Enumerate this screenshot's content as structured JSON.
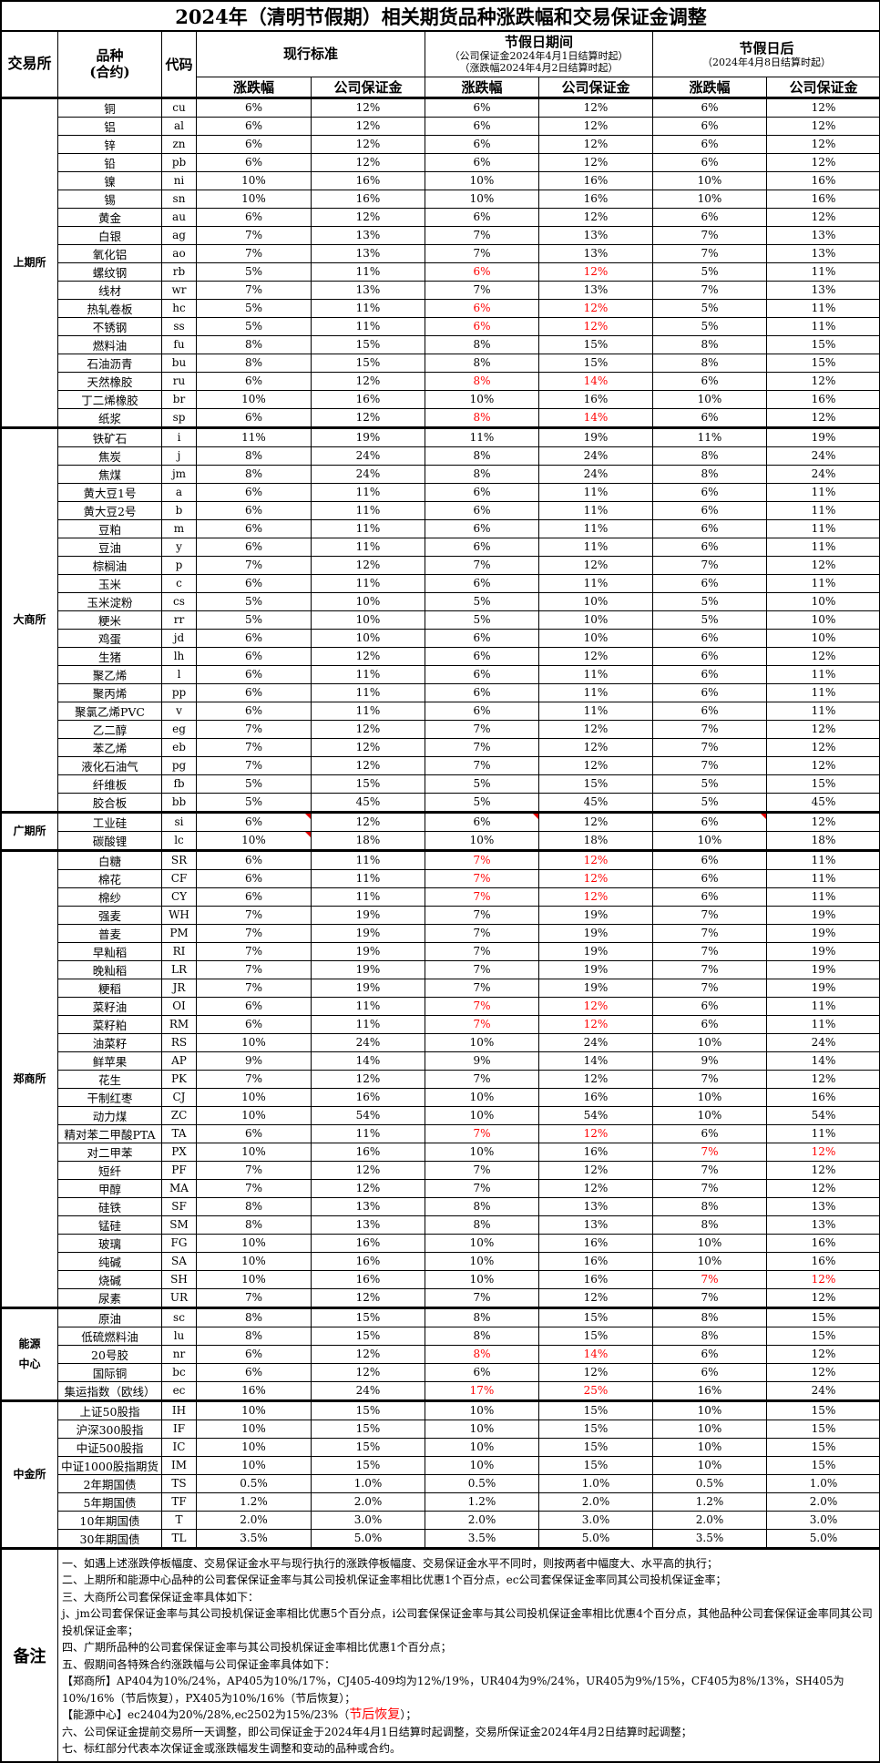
{
  "title": "2024年（清明节假期）相关期货品种涨跌幅和交易保证金调整",
  "header": {
    "exchange": "交易所",
    "variety": "品种\n(合约)",
    "code": "代码",
    "current": "现行标准",
    "holiday": "节假日期间",
    "holiday_sub1": "（公司保证金2024年4月1日结算时起）",
    "holiday_sub2": "（涨跌幅2024年4月2日结算时起）",
    "after": "节假日后",
    "after_sub": "（2024年4月8日结算时起）",
    "limit": "涨跌幅",
    "margin": "公司保证金"
  },
  "colors": {
    "highlight": "#ff0000",
    "comment_marker": "#e00000"
  },
  "exchanges": [
    {
      "name": "上期所",
      "rows": [
        {
          "v": [
            "铜",
            "cu",
            "6%",
            "12%",
            "6%",
            "12%",
            "6%",
            "12%"
          ]
        },
        {
          "v": [
            "铝",
            "al",
            "6%",
            "12%",
            "6%",
            "12%",
            "6%",
            "12%"
          ]
        },
        {
          "v": [
            "锌",
            "zn",
            "6%",
            "12%",
            "6%",
            "12%",
            "6%",
            "12%"
          ]
        },
        {
          "v": [
            "铅",
            "pb",
            "6%",
            "12%",
            "6%",
            "12%",
            "6%",
            "12%"
          ]
        },
        {
          "v": [
            "镍",
            "ni",
            "10%",
            "16%",
            "10%",
            "16%",
            "10%",
            "16%"
          ]
        },
        {
          "v": [
            "锡",
            "sn",
            "10%",
            "16%",
            "10%",
            "16%",
            "10%",
            "16%"
          ]
        },
        {
          "v": [
            "黄金",
            "au",
            "6%",
            "12%",
            "6%",
            "12%",
            "6%",
            "12%"
          ]
        },
        {
          "v": [
            "白银",
            "ag",
            "7%",
            "13%",
            "7%",
            "13%",
            "7%",
            "13%"
          ]
        },
        {
          "v": [
            "氧化铝",
            "ao",
            "7%",
            "13%",
            "7%",
            "13%",
            "7%",
            "13%"
          ]
        },
        {
          "v": [
            "螺纹钢",
            "rb",
            "5%",
            "11%",
            "6%",
            "12%",
            "5%",
            "11%"
          ],
          "red": "holiday"
        },
        {
          "v": [
            "线材",
            "wr",
            "7%",
            "13%",
            "7%",
            "13%",
            "7%",
            "13%"
          ]
        },
        {
          "v": [
            "热轧卷板",
            "hc",
            "5%",
            "11%",
            "6%",
            "12%",
            "5%",
            "11%"
          ],
          "red": "holiday"
        },
        {
          "v": [
            "不锈钢",
            "ss",
            "5%",
            "11%",
            "6%",
            "12%",
            "5%",
            "11%"
          ],
          "red": "holiday"
        },
        {
          "v": [
            "燃料油",
            "fu",
            "8%",
            "15%",
            "8%",
            "15%",
            "8%",
            "15%"
          ]
        },
        {
          "v": [
            "石油沥青",
            "bu",
            "8%",
            "15%",
            "8%",
            "15%",
            "8%",
            "15%"
          ]
        },
        {
          "v": [
            "天然橡胶",
            "ru",
            "6%",
            "12%",
            "8%",
            "14%",
            "6%",
            "12%"
          ],
          "red": "holiday"
        },
        {
          "v": [
            "丁二烯橡胶",
            "br",
            "10%",
            "16%",
            "10%",
            "16%",
            "10%",
            "16%"
          ]
        },
        {
          "v": [
            "纸浆",
            "sp",
            "6%",
            "12%",
            "8%",
            "14%",
            "6%",
            "12%"
          ],
          "red": "holiday"
        }
      ]
    },
    {
      "name": "大商所",
      "rows": [
        {
          "v": [
            "铁矿石",
            "i",
            "11%",
            "19%",
            "11%",
            "19%",
            "11%",
            "19%"
          ]
        },
        {
          "v": [
            "焦炭",
            "j",
            "8%",
            "24%",
            "8%",
            "24%",
            "8%",
            "24%"
          ]
        },
        {
          "v": [
            "焦煤",
            "jm",
            "8%",
            "24%",
            "8%",
            "24%",
            "8%",
            "24%"
          ]
        },
        {
          "v": [
            "黄大豆1号",
            "a",
            "6%",
            "11%",
            "6%",
            "11%",
            "6%",
            "11%"
          ]
        },
        {
          "v": [
            "黄大豆2号",
            "b",
            "6%",
            "11%",
            "6%",
            "11%",
            "6%",
            "11%"
          ]
        },
        {
          "v": [
            "豆粕",
            "m",
            "6%",
            "11%",
            "6%",
            "11%",
            "6%",
            "11%"
          ]
        },
        {
          "v": [
            "豆油",
            "y",
            "6%",
            "11%",
            "6%",
            "11%",
            "6%",
            "11%"
          ]
        },
        {
          "v": [
            "棕榈油",
            "p",
            "7%",
            "12%",
            "7%",
            "12%",
            "7%",
            "12%"
          ]
        },
        {
          "v": [
            "玉米",
            "c",
            "6%",
            "11%",
            "6%",
            "11%",
            "6%",
            "11%"
          ]
        },
        {
          "v": [
            "玉米淀粉",
            "cs",
            "5%",
            "10%",
            "5%",
            "10%",
            "5%",
            "10%"
          ]
        },
        {
          "v": [
            "粳米",
            "rr",
            "5%",
            "10%",
            "5%",
            "10%",
            "5%",
            "10%"
          ]
        },
        {
          "v": [
            "鸡蛋",
            "jd",
            "6%",
            "10%",
            "6%",
            "10%",
            "6%",
            "10%"
          ]
        },
        {
          "v": [
            "生猪",
            "lh",
            "6%",
            "12%",
            "6%",
            "12%",
            "6%",
            "12%"
          ]
        },
        {
          "v": [
            "聚乙烯",
            "l",
            "6%",
            "11%",
            "6%",
            "11%",
            "6%",
            "11%"
          ]
        },
        {
          "v": [
            "聚丙烯",
            "pp",
            "6%",
            "11%",
            "6%",
            "11%",
            "6%",
            "11%"
          ]
        },
        {
          "v": [
            "聚氯乙烯PVC",
            "v",
            "6%",
            "11%",
            "6%",
            "11%",
            "6%",
            "11%"
          ]
        },
        {
          "v": [
            "乙二醇",
            "eg",
            "7%",
            "12%",
            "7%",
            "12%",
            "7%",
            "12%"
          ]
        },
        {
          "v": [
            "苯乙烯",
            "eb",
            "7%",
            "12%",
            "7%",
            "12%",
            "7%",
            "12%"
          ]
        },
        {
          "v": [
            "液化石油气",
            "pg",
            "7%",
            "12%",
            "7%",
            "12%",
            "7%",
            "12%"
          ]
        },
        {
          "v": [
            "纤维板",
            "fb",
            "5%",
            "15%",
            "5%",
            "15%",
            "5%",
            "15%"
          ]
        },
        {
          "v": [
            "胶合板",
            "bb",
            "5%",
            "45%",
            "5%",
            "45%",
            "5%",
            "45%"
          ]
        }
      ]
    },
    {
      "name": "广期所",
      "rows": [
        {
          "v": [
            "工业硅",
            "si",
            "6%",
            "12%",
            "6%",
            "12%",
            "6%",
            "12%"
          ],
          "flags": [
            2,
            4,
            6
          ]
        },
        {
          "v": [
            "碳酸锂",
            "lc",
            "10%",
            "18%",
            "10%",
            "18%",
            "10%",
            "18%"
          ],
          "flags": [
            2
          ]
        }
      ]
    },
    {
      "name": "郑商所",
      "rows": [
        {
          "v": [
            "白糖",
            "SR",
            "6%",
            "11%",
            "7%",
            "12%",
            "6%",
            "11%"
          ],
          "red": "holiday"
        },
        {
          "v": [
            "棉花",
            "CF",
            "6%",
            "11%",
            "7%",
            "12%",
            "6%",
            "11%"
          ],
          "red": "holiday"
        },
        {
          "v": [
            "棉纱",
            "CY",
            "6%",
            "11%",
            "7%",
            "12%",
            "6%",
            "11%"
          ],
          "red": "holiday"
        },
        {
          "v": [
            "强麦",
            "WH",
            "7%",
            "19%",
            "7%",
            "19%",
            "7%",
            "19%"
          ]
        },
        {
          "v": [
            "普麦",
            "PM",
            "7%",
            "19%",
            "7%",
            "19%",
            "7%",
            "19%"
          ]
        },
        {
          "v": [
            "早籼稻",
            "RI",
            "7%",
            "19%",
            "7%",
            "19%",
            "7%",
            "19%"
          ]
        },
        {
          "v": [
            "晚籼稻",
            "LR",
            "7%",
            "19%",
            "7%",
            "19%",
            "7%",
            "19%"
          ]
        },
        {
          "v": [
            "粳稻",
            "JR",
            "7%",
            "19%",
            "7%",
            "19%",
            "7%",
            "19%"
          ]
        },
        {
          "v": [
            "菜籽油",
            "OI",
            "6%",
            "11%",
            "7%",
            "12%",
            "6%",
            "11%"
          ],
          "red": "holiday"
        },
        {
          "v": [
            "菜籽粕",
            "RM",
            "6%",
            "11%",
            "7%",
            "12%",
            "6%",
            "11%"
          ],
          "red": "holiday"
        },
        {
          "v": [
            "油菜籽",
            "RS",
            "10%",
            "24%",
            "10%",
            "24%",
            "10%",
            "24%"
          ]
        },
        {
          "v": [
            "鲜苹果",
            "AP",
            "9%",
            "14%",
            "9%",
            "14%",
            "9%",
            "14%"
          ]
        },
        {
          "v": [
            "花生",
            "PK",
            "7%",
            "12%",
            "7%",
            "12%",
            "7%",
            "12%"
          ]
        },
        {
          "v": [
            "干制红枣",
            "CJ",
            "10%",
            "16%",
            "10%",
            "16%",
            "10%",
            "16%"
          ]
        },
        {
          "v": [
            "动力煤",
            "ZC",
            "10%",
            "54%",
            "10%",
            "54%",
            "10%",
            "54%"
          ]
        },
        {
          "v": [
            "精对苯二甲酸PTA",
            "TA",
            "6%",
            "11%",
            "7%",
            "12%",
            "6%",
            "11%"
          ],
          "red": "holiday"
        },
        {
          "v": [
            "对二甲苯",
            "PX",
            "10%",
            "16%",
            "10%",
            "16%",
            "7%",
            "12%"
          ],
          "red": "after"
        },
        {
          "v": [
            "短纤",
            "PF",
            "7%",
            "12%",
            "7%",
            "12%",
            "7%",
            "12%"
          ]
        },
        {
          "v": [
            "甲醇",
            "MA",
            "7%",
            "12%",
            "7%",
            "12%",
            "7%",
            "12%"
          ]
        },
        {
          "v": [
            "硅铁",
            "SF",
            "8%",
            "13%",
            "8%",
            "13%",
            "8%",
            "13%"
          ]
        },
        {
          "v": [
            "锰硅",
            "SM",
            "8%",
            "13%",
            "8%",
            "13%",
            "8%",
            "13%"
          ]
        },
        {
          "v": [
            "玻璃",
            "FG",
            "10%",
            "16%",
            "10%",
            "16%",
            "10%",
            "16%"
          ]
        },
        {
          "v": [
            "纯碱",
            "SA",
            "10%",
            "16%",
            "10%",
            "16%",
            "10%",
            "16%"
          ]
        },
        {
          "v": [
            "烧碱",
            "SH",
            "10%",
            "16%",
            "10%",
            "16%",
            "7%",
            "12%"
          ],
          "red": "after"
        },
        {
          "v": [
            "尿素",
            "UR",
            "7%",
            "12%",
            "7%",
            "12%",
            "7%",
            "12%"
          ]
        }
      ]
    },
    {
      "name": "能源\n中心",
      "rows": [
        {
          "v": [
            "原油",
            "sc",
            "8%",
            "15%",
            "8%",
            "15%",
            "8%",
            "15%"
          ]
        },
        {
          "v": [
            "低硫燃料油",
            "lu",
            "8%",
            "15%",
            "8%",
            "15%",
            "8%",
            "15%"
          ]
        },
        {
          "v": [
            "20号胶",
            "nr",
            "6%",
            "12%",
            "8%",
            "14%",
            "6%",
            "12%"
          ],
          "red": "holiday"
        },
        {
          "v": [
            "国际铜",
            "bc",
            "6%",
            "12%",
            "6%",
            "12%",
            "6%",
            "12%"
          ]
        },
        {
          "v": [
            "集运指数（欧线）",
            "ec",
            "16%",
            "24%",
            "17%",
            "25%",
            "16%",
            "24%"
          ],
          "red": "holiday"
        }
      ]
    },
    {
      "name": "中金所",
      "rows": [
        {
          "v": [
            "上证50股指",
            "IH",
            "10%",
            "15%",
            "10%",
            "15%",
            "10%",
            "15%"
          ]
        },
        {
          "v": [
            "沪深300股指",
            "IF",
            "10%",
            "15%",
            "10%",
            "15%",
            "10%",
            "15%"
          ]
        },
        {
          "v": [
            "中证500股指",
            "IC",
            "10%",
            "15%",
            "10%",
            "15%",
            "10%",
            "15%"
          ]
        },
        {
          "v": [
            "中证1000股指期货",
            "IM",
            "10%",
            "15%",
            "10%",
            "15%",
            "10%",
            "15%"
          ]
        },
        {
          "v": [
            "2年期国债",
            "TS",
            "0.5%",
            "1.0%",
            "0.5%",
            "1.0%",
            "0.5%",
            "1.0%"
          ]
        },
        {
          "v": [
            "5年期国债",
            "TF",
            "1.2%",
            "2.0%",
            "1.2%",
            "2.0%",
            "1.2%",
            "2.0%"
          ]
        },
        {
          "v": [
            "10年期国债",
            "T",
            "2.0%",
            "3.0%",
            "2.0%",
            "3.0%",
            "2.0%",
            "3.0%"
          ]
        },
        {
          "v": [
            "30年期国债",
            "TL",
            "3.5%",
            "5.0%",
            "3.5%",
            "5.0%",
            "3.5%",
            "5.0%"
          ]
        }
      ]
    }
  ],
  "notes": {
    "label": "备注",
    "lines": [
      "一、如遇上述涨跌停板幅度、交易保证金水平与现行执行的涨跌停板幅度、交易保证金水平不同时，则按两者中幅度大、水平高的执行；",
      "二、上期所和能源中心品种的公司套保保证金率与其公司投机保证金率相比优惠1个百分点，ec公司套保保证金率同其公司投机保证金率；",
      "三、大商所公司套保保证金率具体如下：",
      "j、jm公司套保保证金率与其公司投机保证金率相比优惠5个百分点，i公司套保保证金率与其公司投机保证金率相比优惠4个百分点，其他品种公司套保保证金率同其公司投机保证金率；",
      "四、广期所品种的公司套保保证金率与其公司投机保证金率相比优惠1个百分点；",
      "五、假期间各特殊合约涨跌幅与公司保证金率具体如下：",
      "【郑商所】AP404为10%/24%，AP405为10%/17%，CJ405-409均为12%/19%，UR404为9%/24%，UR405为9%/15%，CF405为8%/13%，SH405为10%/16%（节后恢复），PX405为10%/16%（节后恢复）；"
    ],
    "energy_prefix": "【能源中心】ec2404为20%/28%,ec2502为15%/23%（",
    "energy_red": "节后恢复",
    "energy_suffix": "）；",
    "lines_after": [
      "六、公司保证金提前交易所一天调整，即公司保证金于2024年4月1日结算时起调整，交易所保证金2024年4月2日结算时起调整；",
      "七、标红部分代表本次保证金或涨跌幅发生调整和变动的品种或合约。"
    ]
  }
}
